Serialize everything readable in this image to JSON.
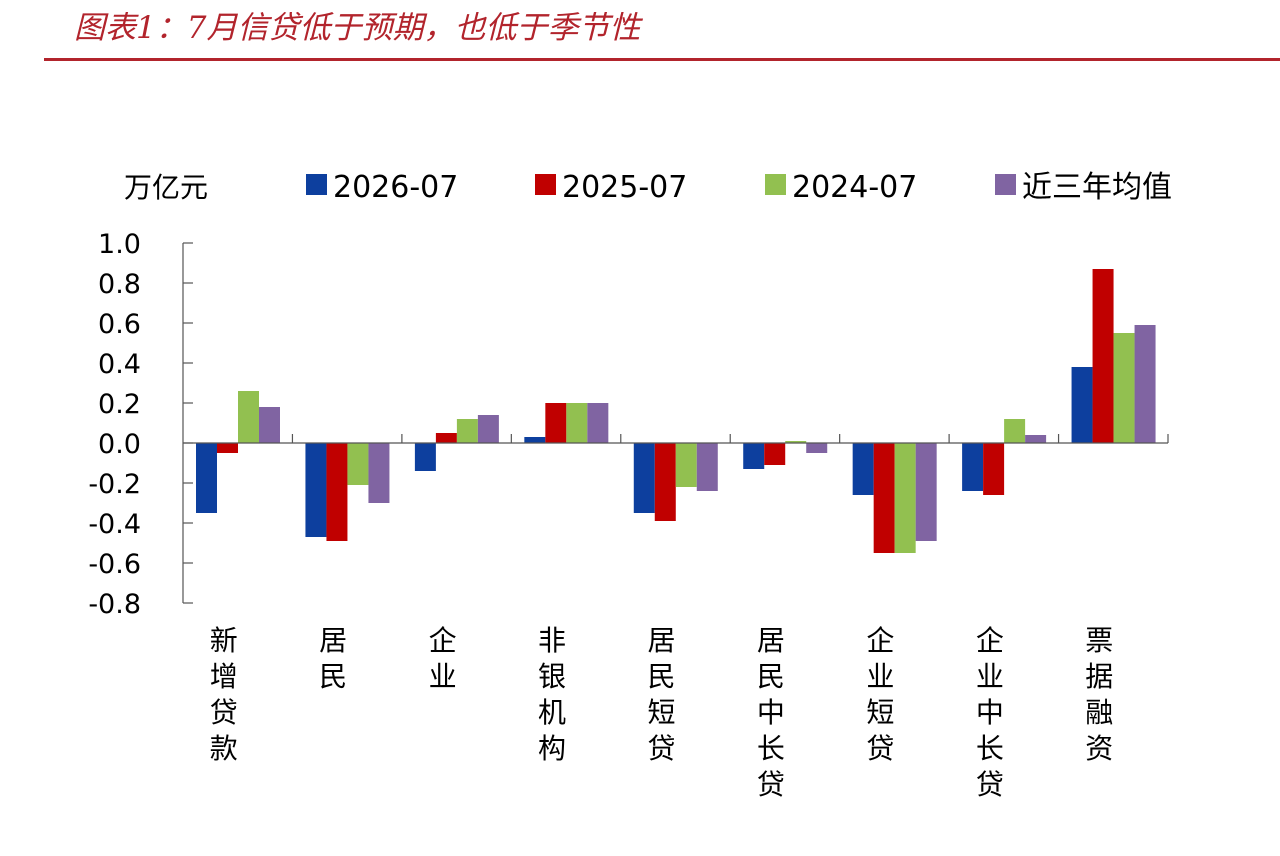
{
  "header": {
    "title": "图表1：7月信贷低于预期，也低于季节性"
  },
  "colors": {
    "title": "#b2242c",
    "series": [
      "#0d3f9e",
      "#c00000",
      "#92c050",
      "#8064a2"
    ]
  },
  "chart_data": {
    "type": "bar",
    "unit_label": "万亿元",
    "categories": [
      "新增贷款",
      "居民",
      "企业",
      "非银机构",
      "居民短贷",
      "居民中长贷",
      "企业短贷",
      "企业中长贷",
      "票据融资"
    ],
    "series": [
      {
        "name": "2026-07",
        "values": [
          -0.35,
          -0.47,
          -0.14,
          0.03,
          -0.35,
          -0.13,
          -0.26,
          -0.24,
          0.38
        ]
      },
      {
        "name": "2025-07",
        "values": [
          -0.05,
          -0.49,
          0.05,
          0.2,
          -0.39,
          -0.11,
          -0.55,
          -0.26,
          0.87
        ]
      },
      {
        "name": "2024-07",
        "values": [
          0.26,
          -0.21,
          0.12,
          0.2,
          -0.22,
          0.01,
          -0.55,
          0.12,
          0.55
        ]
      },
      {
        "name": "近三年均值",
        "values": [
          0.18,
          -0.3,
          0.14,
          0.2,
          -0.24,
          -0.05,
          -0.49,
          0.04,
          0.59
        ]
      }
    ],
    "ylim": [
      -0.8,
      1.0
    ],
    "yticks": [
      "1.0",
      "0.8",
      "0.6",
      "0.4",
      "0.2",
      "0.0",
      "-0.2",
      "-0.4",
      "-0.6",
      "-0.8"
    ],
    "legend_position": "top",
    "grid": false
  }
}
